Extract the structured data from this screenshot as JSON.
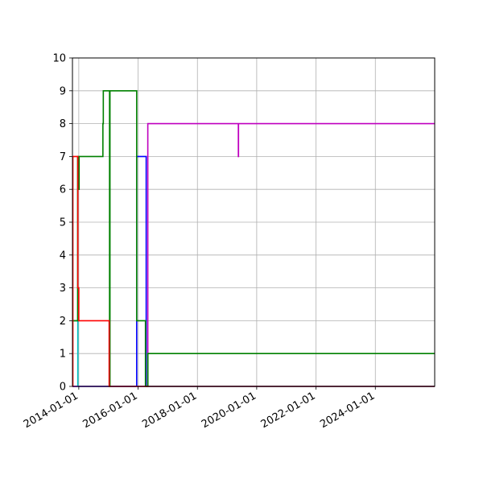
{
  "chart_data": {
    "type": "line",
    "title": "",
    "xlabel": "",
    "ylabel": "",
    "x_axis": "date",
    "xlim": [
      "2013-10-15",
      "2026-01-01"
    ],
    "ylim": [
      0,
      10
    ],
    "y_ticks": [
      0,
      1,
      2,
      3,
      4,
      5,
      6,
      7,
      8,
      9,
      10
    ],
    "y_tick_labels": [
      "0",
      "1",
      "2",
      "3",
      "4",
      "5",
      "6",
      "7",
      "8",
      "9",
      "10"
    ],
    "x_ticks": [
      "2014-01-01",
      "2016-01-01",
      "2018-01-01",
      "2020-01-01",
      "2022-01-01",
      "2024-01-01"
    ],
    "x_tick_labels": [
      "2014-01-01",
      "2016-01-01",
      "2018-01-01",
      "2020-01-01",
      "2022-01-01",
      "2024-01-01"
    ],
    "grid": true,
    "legend": "none",
    "series": [
      {
        "color": "#0000ff",
        "step": "post",
        "points": [
          [
            "2013-10-15",
            0
          ],
          [
            "2015-12-15",
            0
          ],
          [
            "2015-12-15",
            7
          ],
          [
            "2016-04-10",
            7
          ],
          [
            "2016-04-10",
            0
          ],
          [
            "2026-01-01",
            0
          ]
        ]
      },
      {
        "color": "#00bfbf",
        "step": "post",
        "points": [
          [
            "2013-10-15",
            2
          ],
          [
            "2013-12-20",
            2
          ],
          [
            "2013-12-20",
            0
          ],
          [
            "2026-01-01",
            0
          ]
        ]
      },
      {
        "color": "#bf00bf",
        "step": "post",
        "points": [
          [
            "2013-10-15",
            0
          ],
          [
            "2016-04-30",
            0
          ],
          [
            "2016-04-30",
            8
          ],
          [
            "2019-05-20",
            8
          ],
          [
            "2019-05-20",
            7
          ],
          [
            "2019-05-22",
            7
          ],
          [
            "2019-05-22",
            8
          ],
          [
            "2026-01-01",
            8
          ]
        ]
      },
      {
        "color": "#008000",
        "step": "post",
        "points": [
          [
            "2013-10-15",
            2
          ],
          [
            "2013-12-18",
            2
          ],
          [
            "2013-12-18",
            7
          ],
          [
            "2013-12-22",
            7
          ],
          [
            "2013-12-22",
            6
          ],
          [
            "2014-01-05",
            6
          ],
          [
            "2014-01-05",
            7
          ],
          [
            "2014-10-25",
            7
          ],
          [
            "2014-10-25",
            8
          ],
          [
            "2014-10-30",
            8
          ],
          [
            "2014-10-30",
            9
          ],
          [
            "2015-01-15",
            9
          ],
          [
            "2015-01-15",
            0
          ],
          [
            "2015-01-20",
            0
          ],
          [
            "2015-01-20",
            9
          ],
          [
            "2015-12-15",
            9
          ],
          [
            "2015-12-15",
            2
          ],
          [
            "2016-04-01",
            2
          ],
          [
            "2016-04-01",
            0
          ],
          [
            "2016-05-01",
            0
          ],
          [
            "2016-05-01",
            1
          ],
          [
            "2026-01-01",
            1
          ]
        ]
      },
      {
        "color": "#ff0000",
        "step": "post",
        "points": [
          [
            "2013-10-15",
            0
          ],
          [
            "2013-10-20",
            0
          ],
          [
            "2013-10-20",
            7
          ],
          [
            "2013-12-20",
            7
          ],
          [
            "2013-12-20",
            3
          ],
          [
            "2014-01-01",
            3
          ],
          [
            "2014-01-01",
            2
          ],
          [
            "2015-01-10",
            2
          ],
          [
            "2015-01-10",
            0
          ],
          [
            "2026-01-01",
            0
          ]
        ]
      }
    ]
  }
}
